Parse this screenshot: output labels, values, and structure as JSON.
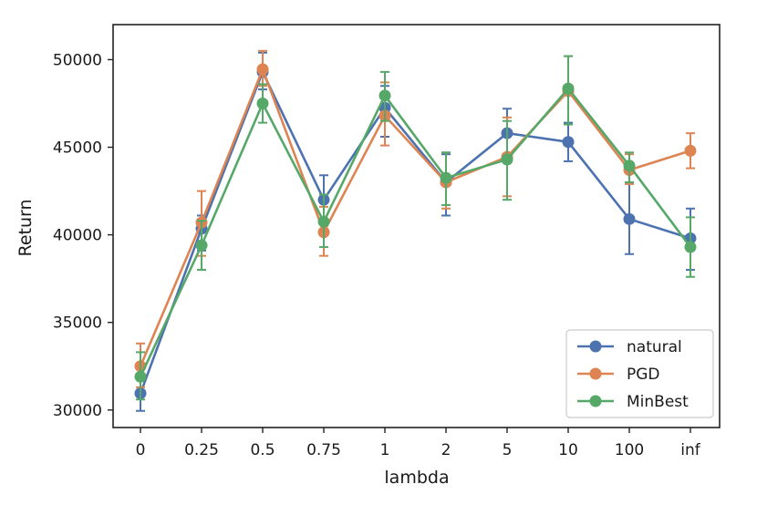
{
  "chart_data": {
    "type": "line",
    "title": "",
    "xlabel": "lambda",
    "ylabel": "Return",
    "categories": [
      "0",
      "0.25",
      "0.5",
      "0.75",
      "1",
      "2",
      "5",
      "10",
      "100",
      "inf"
    ],
    "ylim": [
      29000,
      52000
    ],
    "yticks": [
      30000,
      35000,
      40000,
      45000,
      50000
    ],
    "yticklabels": [
      "30000",
      "35000",
      "40000",
      "45000",
      "50000"
    ],
    "grid": false,
    "legend_position": "bottom-right",
    "series": [
      {
        "name": "natural",
        "color": "#4c72b0",
        "values": [
          30950,
          40350,
          49300,
          42000,
          47250,
          43000,
          45800,
          45300,
          40900,
          39800
        ],
        "err_low": [
          29950,
          39100,
          48300,
          40700,
          45600,
          41100,
          44500,
          44200,
          38900,
          38000
        ],
        "err_high": [
          31900,
          41100,
          50400,
          43400,
          48500,
          44600,
          47200,
          46400,
          43000,
          41500
        ]
      },
      {
        "name": "PGD",
        "color": "#dd8452",
        "values": [
          32500,
          40700,
          49450,
          40150,
          46800,
          43000,
          44450,
          48200,
          43700,
          44800
        ],
        "err_low": [
          31300,
          38800,
          48500,
          38800,
          45100,
          41500,
          42200,
          46300,
          42900,
          43800
        ],
        "err_high": [
          33800,
          42500,
          50500,
          41600,
          48700,
          44700,
          46700,
          50200,
          44600,
          45800
        ]
      },
      {
        "name": "MinBest",
        "color": "#55a868",
        "values": [
          31900,
          39400,
          47500,
          40750,
          47950,
          43250,
          44300,
          48350,
          43950,
          39300
        ],
        "err_low": [
          30600,
          38000,
          46400,
          39300,
          46500,
          41700,
          42000,
          46300,
          43000,
          37600
        ],
        "err_high": [
          33300,
          40800,
          48600,
          42300,
          49300,
          44700,
          46500,
          50200,
          44700,
          41000
        ]
      }
    ]
  }
}
